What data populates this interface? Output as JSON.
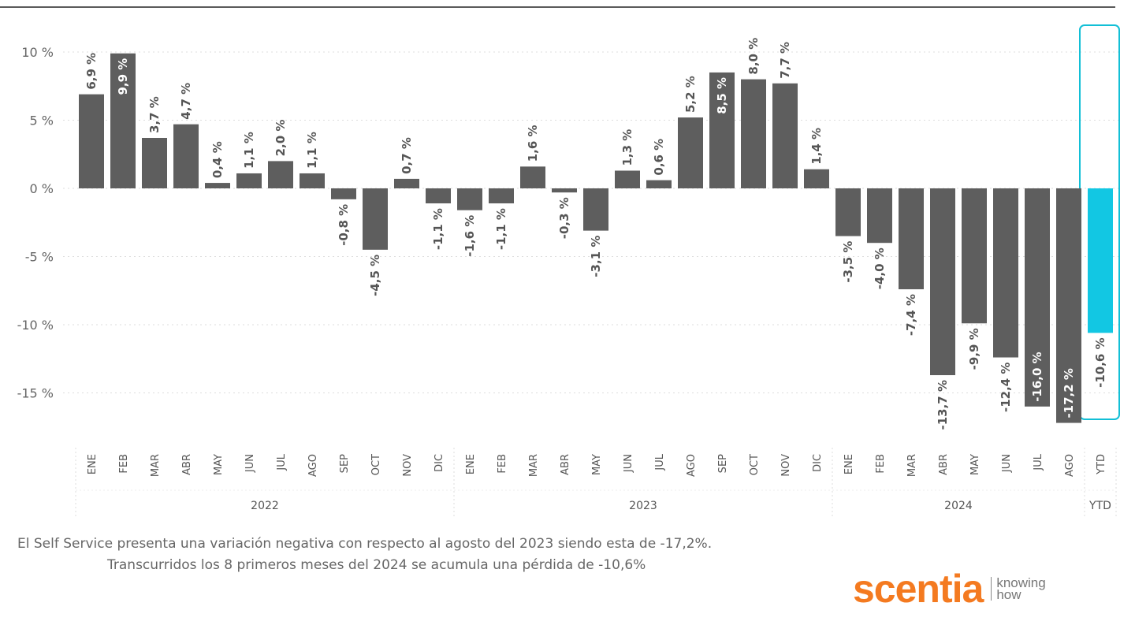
{
  "chart_data": {
    "type": "bar",
    "title": "",
    "xlabel": "",
    "ylabel": "",
    "ylim": [
      -17.5,
      11
    ],
    "yticks": [
      10,
      5,
      0,
      -5,
      -10,
      -15
    ],
    "ytick_labels": [
      "10 %",
      "5 %",
      "0 %",
      "-5 %",
      "-10 %",
      "-15 %"
    ],
    "grid": true,
    "groups": [
      {
        "label": "2022",
        "categories": [
          "ENE",
          "FEB",
          "MAR",
          "ABR",
          "MAY",
          "JUN",
          "JUL",
          "AGO",
          "SEP",
          "OCT",
          "NOV",
          "DIC"
        ],
        "values": [
          6.9,
          9.9,
          3.7,
          4.7,
          0.4,
          1.1,
          2.0,
          1.1,
          -0.8,
          -4.5,
          0.7,
          -1.1
        ]
      },
      {
        "label": "2023",
        "categories": [
          "ENE",
          "FEB",
          "MAR",
          "ABR",
          "MAY",
          "JUN",
          "JUL",
          "AGO",
          "SEP",
          "OCT",
          "NOV",
          "DIC"
        ],
        "values": [
          -1.6,
          -1.1,
          1.6,
          -0.3,
          -3.1,
          1.3,
          0.6,
          5.2,
          8.5,
          8.0,
          7.7,
          1.4
        ]
      },
      {
        "label": "2024",
        "categories": [
          "ENE",
          "FEB",
          "MAR",
          "ABR",
          "MAY",
          "JUN",
          "JUL",
          "AGO"
        ],
        "values": [
          -3.5,
          -4.0,
          -7.4,
          -13.7,
          -9.9,
          -12.4,
          -16.0,
          -17.2
        ]
      },
      {
        "label": "YTD",
        "categories": [
          "YTD"
        ],
        "values": [
          -10.6
        ],
        "highlight": true
      }
    ],
    "colors": {
      "bar": "#5e5e5e",
      "highlight": "#12c7e3",
      "highlight_box": "#12bfd6"
    }
  },
  "captions": {
    "line1": "El Self Service presenta una variación negativa con respecto al agosto del 2023 siendo esta de -17,2%.",
    "line2": "Transcurridos los 8 primeros meses del 2024 se acumula una pérdida de -10,6%"
  },
  "logo": {
    "word": "scentia",
    "tagline": "knowing how",
    "color": "#f47a20"
  }
}
